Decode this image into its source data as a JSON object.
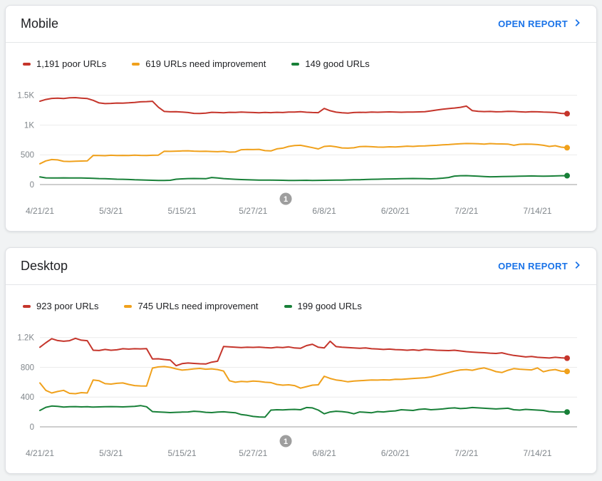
{
  "page": {
    "background": "#f1f3f4"
  },
  "cards": [
    {
      "title": "Mobile",
      "open_report_label": "OPEN REPORT",
      "legend": [
        {
          "label": "1,191 poor URLs",
          "color": "#c5352b"
        },
        {
          "label": "619 URLs need improvement",
          "color": "#f0a11c"
        },
        {
          "label": "149 good URLs",
          "color": "#188038"
        }
      ],
      "chart_data": {
        "type": "line",
        "ylim": [
          0,
          1700
        ],
        "y_ticks": [
          {
            "value": 0,
            "label": "0"
          },
          {
            "value": 500,
            "label": "500"
          },
          {
            "value": 1000,
            "label": "1K"
          },
          {
            "value": 1500,
            "label": "1.5K"
          }
        ],
        "x_ticks": [
          {
            "day": 0,
            "label": "4/21/21"
          },
          {
            "day": 12,
            "label": "5/3/21"
          },
          {
            "day": 24,
            "label": "5/15/21"
          },
          {
            "day": 36,
            "label": "5/27/21"
          },
          {
            "day": 48,
            "label": "6/8/21"
          },
          {
            "day": 60,
            "label": "6/20/21"
          },
          {
            "day": 72,
            "label": "7/2/21"
          },
          {
            "day": 84,
            "label": "7/14/21"
          }
        ],
        "annotation": {
          "label": "1",
          "day_index": 41.5
        },
        "series": [
          {
            "name": "poor URLs",
            "count": 1191,
            "color": "#c5352b",
            "values": [
              1400,
              1430,
              1447,
              1452,
              1445,
              1458,
              1460,
              1452,
              1445,
              1415,
              1372,
              1360,
              1364,
              1370,
              1368,
              1373,
              1380,
              1390,
              1394,
              1399,
              1300,
              1228,
              1222,
              1224,
              1218,
              1210,
              1196,
              1193,
              1200,
              1214,
              1210,
              1206,
              1214,
              1212,
              1217,
              1214,
              1210,
              1206,
              1212,
              1208,
              1214,
              1210,
              1219,
              1217,
              1224,
              1215,
              1210,
              1208,
              1278,
              1240,
              1216,
              1206,
              1200,
              1210,
              1214,
              1212,
              1217,
              1215,
              1219,
              1221,
              1217,
              1215,
              1219,
              1217,
              1221,
              1224,
              1238,
              1252,
              1266,
              1276,
              1286,
              1298,
              1318,
              1242,
              1230,
              1226,
              1228,
              1222,
              1225,
              1230,
              1228,
              1222,
              1218,
              1225,
              1222,
              1218,
              1215,
              1210,
              1196,
              1191
            ]
          },
          {
            "name": "URLs need improvement",
            "count": 619,
            "color": "#f0a11c",
            "values": [
              350,
              398,
              420,
              414,
              390,
              388,
              392,
              395,
              398,
              490,
              488,
              485,
              492,
              488,
              490,
              487,
              493,
              490,
              488,
              492,
              495,
              560,
              558,
              562,
              565,
              568,
              562,
              558,
              560,
              555,
              552,
              558,
              545,
              548,
              585,
              590,
              588,
              592,
              570,
              565,
              600,
              612,
              640,
              655,
              660,
              640,
              620,
              598,
              640,
              648,
              635,
              615,
              612,
              618,
              638,
              640,
              636,
              630,
              628,
              634,
              632,
              638,
              645,
              640,
              648,
              650,
              655,
              660,
              668,
              672,
              680,
              685,
              690,
              688,
              685,
              680,
              688,
              684,
              682,
              680,
              660,
              676,
              680,
              678,
              672,
              660,
              640,
              652,
              628,
              619
            ]
          },
          {
            "name": "good URLs",
            "count": 149,
            "color": "#188038",
            "values": [
              128,
              112,
              110,
              111,
              112,
              110,
              111,
              110,
              108,
              105,
              100,
              98,
              95,
              90,
              88,
              85,
              80,
              78,
              75,
              72,
              70,
              68,
              72,
              90,
              96,
              100,
              102,
              100,
              98,
              118,
              110,
              100,
              95,
              88,
              84,
              80,
              78,
              76,
              75,
              74,
              73,
              72,
              70,
              70,
              71,
              72,
              70,
              71,
              72,
              73,
              74,
              75,
              78,
              80,
              82,
              85,
              88,
              90,
              92,
              95,
              96,
              98,
              100,
              102,
              100,
              98,
              96,
              100,
              108,
              118,
              142,
              148,
              150,
              145,
              140,
              135,
              130,
              132,
              134,
              136,
              138,
              140,
              142,
              145,
              143,
              140,
              142,
              145,
              148,
              149
            ]
          }
        ]
      }
    },
    {
      "title": "Desktop",
      "open_report_label": "OPEN REPORT",
      "legend": [
        {
          "label": "923 poor URLs",
          "color": "#c5352b"
        },
        {
          "label": "745 URLs need improvement",
          "color": "#f0a11c"
        },
        {
          "label": "199 good URLs",
          "color": "#188038"
        }
      ],
      "chart_data": {
        "type": "line",
        "ylim": [
          0,
          1360
        ],
        "y_ticks": [
          {
            "value": 0,
            "label": "0"
          },
          {
            "value": 400,
            "label": "400"
          },
          {
            "value": 800,
            "label": "800"
          },
          {
            "value": 1200,
            "label": "1.2K"
          }
        ],
        "x_ticks": [
          {
            "day": 0,
            "label": "4/21/21"
          },
          {
            "day": 12,
            "label": "5/3/21"
          },
          {
            "day": 24,
            "label": "5/15/21"
          },
          {
            "day": 36,
            "label": "5/27/21"
          },
          {
            "day": 48,
            "label": "6/8/21"
          },
          {
            "day": 60,
            "label": "6/20/21"
          },
          {
            "day": 72,
            "label": "7/2/21"
          },
          {
            "day": 84,
            "label": "7/14/21"
          }
        ],
        "annotation": {
          "label": "1",
          "day_index": 41.5
        },
        "series": [
          {
            "name": "poor URLs",
            "count": 923,
            "color": "#c5352b",
            "values": [
              1070,
              1130,
              1185,
              1160,
              1150,
              1158,
              1190,
              1165,
              1158,
              1030,
              1026,
              1040,
              1030,
              1035,
              1050,
              1045,
              1050,
              1048,
              1052,
              912,
              915,
              905,
              898,
              822,
              850,
              858,
              852,
              848,
              845,
              870,
              882,
              1080,
              1075,
              1070,
              1066,
              1070,
              1068,
              1072,
              1065,
              1060,
              1070,
              1065,
              1075,
              1060,
              1055,
              1092,
              1110,
              1070,
              1060,
              1150,
              1078,
              1070,
              1065,
              1060,
              1056,
              1060,
              1050,
              1046,
              1040,
              1045,
              1038,
              1035,
              1030,
              1035,
              1028,
              1040,
              1035,
              1030,
              1028,
              1025,
              1030,
              1020,
              1010,
              1005,
              1000,
              996,
              990,
              986,
              995,
              975,
              960,
              950,
              940,
              945,
              935,
              930,
              925,
              935,
              928,
              923
            ]
          },
          {
            "name": "URLs need improvement",
            "count": 745,
            "color": "#f0a11c",
            "values": [
              590,
              490,
              455,
              475,
              490,
              450,
              445,
              460,
              455,
              630,
              620,
              580,
              575,
              585,
              590,
              570,
              555,
              550,
              548,
              790,
              805,
              810,
              800,
              780,
              762,
              770,
              780,
              785,
              775,
              780,
              770,
              750,
              620,
              600,
              610,
              605,
              615,
              610,
              600,
              595,
              570,
              560,
              565,
              555,
              520,
              540,
              560,
              565,
              680,
              650,
              630,
              620,
              605,
              615,
              620,
              625,
              630,
              628,
              632,
              630,
              640,
              638,
              645,
              650,
              655,
              660,
              670,
              690,
              710,
              730,
              750,
              765,
              770,
              760,
              780,
              792,
              770,
              742,
              730,
              760,
              782,
              775,
              770,
              765,
              792,
              740,
              760,
              770,
              748,
              745
            ]
          },
          {
            "name": "good URLs",
            "count": 199,
            "color": "#188038",
            "values": [
              220,
              262,
              280,
              275,
              265,
              270,
              272,
              268,
              270,
              265,
              268,
              270,
              272,
              270,
              268,
              272,
              275,
              285,
              270,
              205,
              200,
              196,
              192,
              195,
              198,
              200,
              210,
              205,
              195,
              192,
              198,
              202,
              195,
              190,
              165,
              155,
              140,
              133,
              130,
              225,
              230,
              228,
              232,
              235,
              230,
              260,
              255,
              225,
              175,
              200,
              210,
              205,
              195,
              175,
              200,
              195,
              190,
              205,
              200,
              210,
              215,
              230,
              225,
              220,
              235,
              240,
              230,
              235,
              240,
              250,
              255,
              245,
              250,
              260,
              255,
              250,
              245,
              240,
              245,
              250,
              230,
              225,
              235,
              230,
              225,
              220,
              205,
              200,
              200,
              199
            ]
          }
        ]
      }
    }
  ],
  "chart_style": {
    "grid_color": "#ececec",
    "baseline_color": "#9e9e9e",
    "tick_text_color": "#80868b",
    "annotation_fill": "#9e9e9e",
    "annotation_text_color": "#ffffff",
    "link_color": "#1a73e8"
  }
}
